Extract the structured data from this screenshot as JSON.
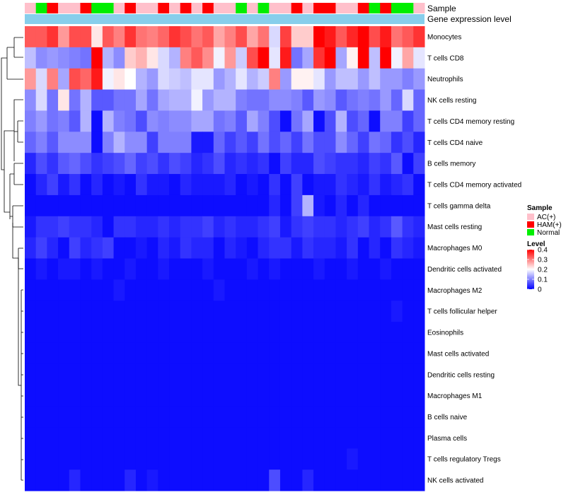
{
  "chart_data": {
    "type": "heatmap",
    "title": "",
    "rows": [
      "Monocytes",
      "T cells CD8",
      "Neutrophils",
      "NK cells resting",
      "T cells CD4 memory resting",
      "T cells CD4 naive",
      "B cells memory",
      "T cells CD4 memory activated",
      "T cells gamma delta",
      "Mast cells resting",
      "Macrophages M0",
      "Dendritic cells activated",
      "Macrophages M2",
      "T cells follicular helper",
      "Eosinophils",
      "Mast cells activated",
      "Dendritic cells resting",
      "Macrophages M1",
      "B cells naive",
      "Plasma cells",
      "T cells regulatory  Tregs",
      "NK cells activated"
    ],
    "column_groups": [
      "AC(+)",
      "N",
      "H",
      "AC(+)",
      "AC(+)",
      "H",
      "N",
      "N",
      "AC(+)",
      "H",
      "AC(+)",
      "AC(+)",
      "H",
      "AC(+)",
      "H",
      "AC(+)",
      "H",
      "AC(+)",
      "AC(+)",
      "N",
      "AC(+)",
      "N",
      "AC(+)",
      "AC(+)",
      "H",
      "AC(+)",
      "H",
      "H",
      "AC(+)",
      "AC(+)",
      "H",
      "N",
      "H",
      "N",
      "N",
      "AC(+)"
    ],
    "values": [
      [
        0.33,
        0.33,
        0.36,
        0.28,
        0.34,
        0.34,
        0.22,
        0.33,
        0.3,
        0.36,
        0.31,
        0.3,
        0.32,
        0.36,
        0.34,
        0.31,
        0.33,
        0.27,
        0.3,
        0.34,
        0.27,
        0.31,
        0.17,
        0.35,
        0.24,
        0.24,
        0.4,
        0.38,
        0.33,
        0.37,
        0.4,
        0.34,
        0.38,
        0.31,
        0.33,
        0.36
      ],
      [
        0.15,
        0.11,
        0.12,
        0.11,
        0.1,
        0.09,
        0.4,
        0.14,
        0.11,
        0.24,
        0.26,
        0.22,
        0.17,
        0.14,
        0.3,
        0.33,
        0.29,
        0.19,
        0.28,
        0.16,
        0.34,
        0.4,
        0.18,
        0.38,
        0.09,
        0.13,
        0.36,
        0.4,
        0.13,
        0.21,
        0.4,
        0.15,
        0.4,
        0.19,
        0.27,
        0.18
      ],
      [
        0.28,
        0.17,
        0.3,
        0.13,
        0.34,
        0.32,
        0.38,
        0.19,
        0.22,
        0.2,
        0.14,
        0.12,
        0.17,
        0.16,
        0.15,
        0.18,
        0.18,
        0.12,
        0.14,
        0.18,
        0.14,
        0.16,
        0.3,
        0.12,
        0.21,
        0.21,
        0.18,
        0.12,
        0.15,
        0.15,
        0.12,
        0.15,
        0.12,
        0.12,
        0.1,
        0.12
      ],
      [
        0.11,
        0.17,
        0.09,
        0.22,
        0.09,
        0.14,
        0.07,
        0.07,
        0.09,
        0.09,
        0.13,
        0.09,
        0.13,
        0.14,
        0.14,
        0.19,
        0.12,
        0.14,
        0.14,
        0.1,
        0.09,
        0.09,
        0.11,
        0.11,
        0.1,
        0.07,
        0.12,
        0.11,
        0.07,
        0.09,
        0.1,
        0.09,
        0.12,
        0.08,
        0.17,
        0.08
      ],
      [
        0.1,
        0.12,
        0.09,
        0.1,
        0.07,
        0.14,
        0.01,
        0.14,
        0.1,
        0.09,
        0.06,
        0.11,
        0.1,
        0.11,
        0.11,
        0.13,
        0.13,
        0.09,
        0.1,
        0.07,
        0.13,
        0.1,
        0.06,
        0.01,
        0.09,
        0.13,
        0.01,
        0.06,
        0.14,
        0.06,
        0.08,
        0.01,
        0.1,
        0.1,
        0.05,
        0.08
      ],
      [
        0.08,
        0.1,
        0.07,
        0.11,
        0.11,
        0.11,
        0.01,
        0.1,
        0.14,
        0.11,
        0.11,
        0.05,
        0.1,
        0.1,
        0.1,
        0.02,
        0.02,
        0.08,
        0.05,
        0.07,
        0.05,
        0.09,
        0.06,
        0.08,
        0.05,
        0.09,
        0.06,
        0.06,
        0.11,
        0.08,
        0.05,
        0.09,
        0.08,
        0.04,
        0.06,
        0.03
      ],
      [
        0.03,
        0.06,
        0.04,
        0.07,
        0.08,
        0.06,
        0.04,
        0.05,
        0.06,
        0.08,
        0.05,
        0.06,
        0.04,
        0.06,
        0.05,
        0.03,
        0.04,
        0.06,
        0.03,
        0.04,
        0.03,
        0.04,
        0.01,
        0.05,
        0.03,
        0.03,
        0.06,
        0.05,
        0.04,
        0.04,
        0.03,
        0.05,
        0.04,
        0.07,
        0.01,
        0.05
      ],
      [
        0.01,
        0.03,
        0.05,
        0.02,
        0.04,
        0.01,
        0.03,
        0.01,
        0.02,
        0.01,
        0.04,
        0.02,
        0.02,
        0.01,
        0.03,
        0.02,
        0.02,
        0.02,
        0.03,
        0.01,
        0.02,
        0.01,
        0.04,
        0.01,
        0.05,
        0.01,
        0.02,
        0.02,
        0.04,
        0.03,
        0.02,
        0.04,
        0.02,
        0.03,
        0.04,
        0.01
      ],
      [
        0.01,
        0.01,
        0.01,
        0.01,
        0.01,
        0.01,
        0.01,
        0.01,
        0.01,
        0.01,
        0.01,
        0.01,
        0.01,
        0.01,
        0.01,
        0.01,
        0.01,
        0.01,
        0.01,
        0.01,
        0.01,
        0.01,
        0.03,
        0.01,
        0.05,
        0.14,
        0.02,
        0.01,
        0.03,
        0.01,
        0.03,
        0.01,
        0.01,
        0.01,
        0.01,
        0.01
      ],
      [
        0.02,
        0.04,
        0.04,
        0.05,
        0.04,
        0.04,
        0.03,
        0.01,
        0.04,
        0.04,
        0.03,
        0.03,
        0.04,
        0.03,
        0.04,
        0.04,
        0.05,
        0.03,
        0.04,
        0.03,
        0.03,
        0.04,
        0.05,
        0.02,
        0.04,
        0.05,
        0.04,
        0.04,
        0.03,
        0.04,
        0.05,
        0.03,
        0.04,
        0.07,
        0.04,
        0.03
      ],
      [
        0.03,
        0.05,
        0.03,
        0.01,
        0.05,
        0.03,
        0.04,
        0.05,
        0.01,
        0.01,
        0.02,
        0.01,
        0.03,
        0.02,
        0.04,
        0.03,
        0.03,
        0.01,
        0.03,
        0.02,
        0.01,
        0.03,
        0.04,
        0.04,
        0.02,
        0.04,
        0.03,
        0.03,
        0.02,
        0.04,
        0.01,
        0.03,
        0.01,
        0.04,
        0.03,
        0.02
      ],
      [
        0.01,
        0.02,
        0.01,
        0.02,
        0.02,
        0.01,
        0.02,
        0.01,
        0.01,
        0.02,
        0.01,
        0.01,
        0.02,
        0.01,
        0.01,
        0.01,
        0.02,
        0.01,
        0.01,
        0.01,
        0.02,
        0.01,
        0.02,
        0.01,
        0.01,
        0.01,
        0.02,
        0.01,
        0.01,
        0.02,
        0.01,
        0.01,
        0.02,
        0.01,
        0.01,
        0.01
      ],
      [
        0.01,
        0.01,
        0.01,
        0.01,
        0.01,
        0.01,
        0.01,
        0.01,
        0.02,
        0.01,
        0.01,
        0.01,
        0.01,
        0.01,
        0.01,
        0.01,
        0.01,
        0.02,
        0.01,
        0.01,
        0.01,
        0.01,
        0.01,
        0.01,
        0.01,
        0.01,
        0.01,
        0.01,
        0.01,
        0.01,
        0.01,
        0.01,
        0.01,
        0.01,
        0.01,
        0.01
      ],
      [
        0.01,
        0.01,
        0.01,
        0.01,
        0.01,
        0.01,
        0.01,
        0.01,
        0.01,
        0.01,
        0.01,
        0.01,
        0.01,
        0.01,
        0.01,
        0.01,
        0.01,
        0.01,
        0.01,
        0.01,
        0.01,
        0.01,
        0.01,
        0.01,
        0.01,
        0.01,
        0.01,
        0.01,
        0.01,
        0.01,
        0.01,
        0.01,
        0.01,
        0.02,
        0.01,
        0.01
      ],
      [
        0.01,
        0.01,
        0.01,
        0.01,
        0.01,
        0.01,
        0.01,
        0.01,
        0.01,
        0.01,
        0.01,
        0.01,
        0.01,
        0.01,
        0.01,
        0.01,
        0.01,
        0.01,
        0.01,
        0.01,
        0.01,
        0.01,
        0.01,
        0.01,
        0.01,
        0.01,
        0.01,
        0.01,
        0.01,
        0.01,
        0.01,
        0.01,
        0.01,
        0.01,
        0.01,
        0.01
      ],
      [
        0.01,
        0.01,
        0.01,
        0.01,
        0.01,
        0.01,
        0.01,
        0.01,
        0.01,
        0.01,
        0.01,
        0.01,
        0.01,
        0.01,
        0.01,
        0.01,
        0.01,
        0.01,
        0.01,
        0.01,
        0.01,
        0.01,
        0.01,
        0.01,
        0.01,
        0.01,
        0.01,
        0.01,
        0.01,
        0.01,
        0.01,
        0.01,
        0.01,
        0.01,
        0.01,
        0.01
      ],
      [
        0.01,
        0.01,
        0.01,
        0.01,
        0.01,
        0.01,
        0.01,
        0.01,
        0.01,
        0.01,
        0.01,
        0.01,
        0.01,
        0.01,
        0.01,
        0.01,
        0.01,
        0.01,
        0.01,
        0.01,
        0.01,
        0.01,
        0.01,
        0.01,
        0.01,
        0.01,
        0.01,
        0.01,
        0.01,
        0.01,
        0.01,
        0.01,
        0.01,
        0.01,
        0.01,
        0.01
      ],
      [
        0.01,
        0.01,
        0.01,
        0.01,
        0.01,
        0.01,
        0.01,
        0.01,
        0.01,
        0.01,
        0.01,
        0.01,
        0.01,
        0.01,
        0.01,
        0.01,
        0.01,
        0.01,
        0.01,
        0.01,
        0.01,
        0.01,
        0.01,
        0.01,
        0.01,
        0.01,
        0.01,
        0.01,
        0.01,
        0.01,
        0.01,
        0.01,
        0.01,
        0.01,
        0.01,
        0.01
      ],
      [
        0.01,
        0.01,
        0.01,
        0.01,
        0.01,
        0.01,
        0.01,
        0.01,
        0.01,
        0.01,
        0.01,
        0.01,
        0.01,
        0.01,
        0.01,
        0.01,
        0.01,
        0.01,
        0.01,
        0.01,
        0.01,
        0.01,
        0.01,
        0.01,
        0.01,
        0.01,
        0.01,
        0.01,
        0.01,
        0.01,
        0.01,
        0.01,
        0.01,
        0.01,
        0.01,
        0.01
      ],
      [
        0.01,
        0.01,
        0.01,
        0.01,
        0.01,
        0.01,
        0.01,
        0.01,
        0.01,
        0.01,
        0.01,
        0.01,
        0.01,
        0.01,
        0.01,
        0.01,
        0.01,
        0.01,
        0.01,
        0.01,
        0.01,
        0.01,
        0.01,
        0.01,
        0.01,
        0.01,
        0.01,
        0.01,
        0.01,
        0.01,
        0.01,
        0.01,
        0.01,
        0.01,
        0.01,
        0.01
      ],
      [
        0.01,
        0.01,
        0.01,
        0.01,
        0.01,
        0.01,
        0.01,
        0.01,
        0.01,
        0.01,
        0.01,
        0.01,
        0.01,
        0.01,
        0.01,
        0.01,
        0.01,
        0.01,
        0.01,
        0.01,
        0.01,
        0.01,
        0.01,
        0.01,
        0.01,
        0.01,
        0.01,
        0.01,
        0.01,
        0.02,
        0.01,
        0.01,
        0.01,
        0.01,
        0.01,
        0.01
      ],
      [
        0.01,
        0.01,
        0.01,
        0.01,
        0.03,
        0.01,
        0.01,
        0.01,
        0.01,
        0.03,
        0.01,
        0.02,
        0.01,
        0.01,
        0.01,
        0.01,
        0.01,
        0.01,
        0.01,
        0.01,
        0.01,
        0.01,
        0.06,
        0.01,
        0.01,
        0.03,
        0.01,
        0.01,
        0.01,
        0.01,
        0.01,
        0.01,
        0.01,
        0.01,
        0.01,
        0.01
      ]
    ],
    "annotations": [
      {
        "name": "Sample",
        "type": "categorical"
      },
      {
        "name": "Gene expression level",
        "type": "continuous",
        "color": "#87CEEB"
      }
    ],
    "legends": [
      {
        "title": "Sample",
        "entries": [
          {
            "label": "AC(+)",
            "color": "#FFC0CB"
          },
          {
            "label": "HAM(+)",
            "color": "#FF0000"
          },
          {
            "label": "Normal",
            "color": "#00EE00"
          }
        ]
      },
      {
        "title": "Level",
        "ticks": [
          0.4,
          0.3,
          0.2,
          0.1,
          0
        ],
        "range": [
          0,
          0.4
        ],
        "colors": {
          "low": "#0000FF",
          "mid": "#FFFFFF",
          "high": "#FF0000"
        }
      }
    ],
    "group_colors": {
      "AC(+)": "#FFC0CB",
      "H": "#FF0000",
      "N": "#00EE00"
    }
  }
}
